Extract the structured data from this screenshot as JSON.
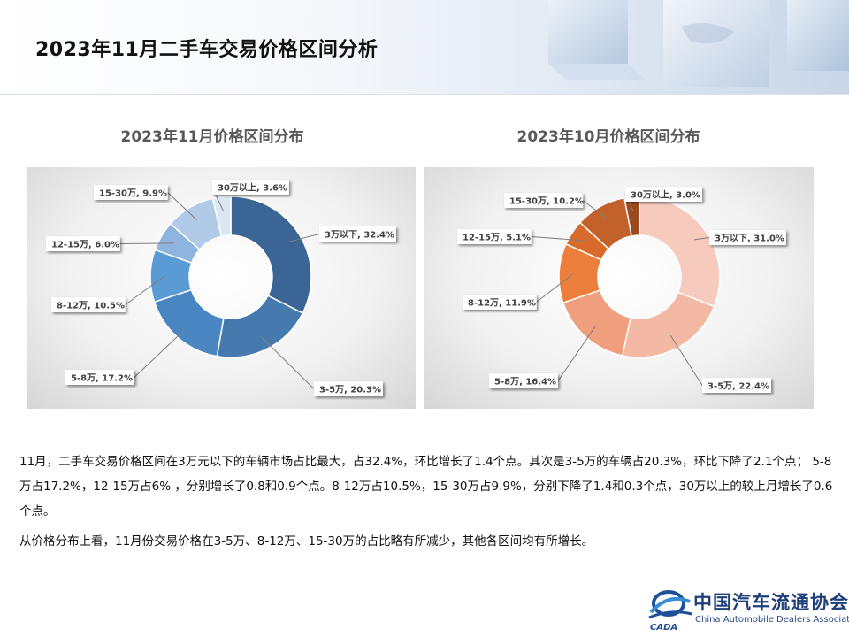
{
  "page": {
    "title": "2023年11月二手车交易价格区间分析"
  },
  "paragraphs": [
    "11月，二手车交易价格区间在3万元以下的车辆市场占比最大，占32.4%，环比增长了1.4个点。其次是3-5万的车辆占20.3%，环比下降了2.1个点； 5-8万占17.2%，12-15万占6% ，分别增长了0.8和0.9个点。8-12万占10.5%，15-30万占9.9%，分别下降了1.4和0.3个点，30万以上的较上月增长了0.6个点。",
    "从价格分布上看，11月份交易价格在3-5万、8-12万、15-30万的占比略有所减少，其他各区间均有所增长。"
  ],
  "logo": {
    "name": "中国汽车流通协会",
    "english": "China Automobile Dealers Association",
    "mark_text": "CADA"
  },
  "chart_data": [
    {
      "type": "pie",
      "variant": "donut",
      "title": "2023年11月价格区间分布",
      "categories": [
        "3万以下",
        "3-5万",
        "5-8万",
        "8-12万",
        "12-15万",
        "15-30万",
        "30万以上"
      ],
      "values": [
        32.4,
        20.3,
        17.2,
        10.5,
        6.0,
        9.9,
        3.6
      ],
      "value_labels": [
        "3万以下, 32.4%",
        "3-5万, 20.3%",
        "5-8万, 17.2%",
        "8-12万, 10.5%",
        "12-15万, 6.0%",
        "15-30万, 9.9%",
        "30万以上, 3.6%"
      ],
      "colors": [
        "#3b6594",
        "#4679ad",
        "#4a86c2",
        "#5a9bd5",
        "#8fb4de",
        "#b1cae7",
        "#dbe7f4"
      ],
      "legend": "none"
    },
    {
      "type": "pie",
      "variant": "donut",
      "title": "2023年10月价格区间分布",
      "categories": [
        "3万以下",
        "3-5万",
        "5-8万",
        "8-12万",
        "12-15万",
        "15-30万",
        "30万以上"
      ],
      "values": [
        31.0,
        22.4,
        16.4,
        11.9,
        5.1,
        10.2,
        3.0
      ],
      "value_labels": [
        "3万以下, 31.0%",
        "3-5万, 22.4%",
        "5-8万, 16.4%",
        "8-12万, 11.9%",
        "12-15万, 5.1%",
        "15-30万, 10.2%",
        "30万以上, 3.0%"
      ],
      "colors": [
        "#f6cbbd",
        "#f3b9a4",
        "#ef9f7e",
        "#ec7f3c",
        "#d86b2c",
        "#c2622a",
        "#9c4a1d"
      ],
      "legend": "none"
    }
  ]
}
